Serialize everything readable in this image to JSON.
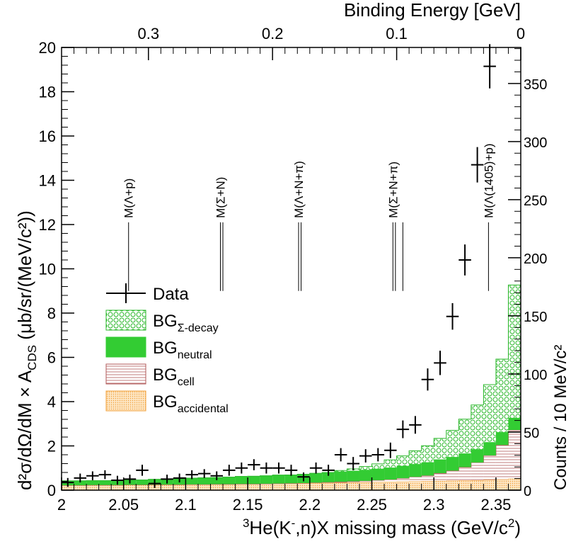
{
  "chart_data": {
    "type": "histogram",
    "xlabel_main": "He(K",
    "xlabel_sup1": "3",
    "xlabel_sup2": "-",
    "xlabel_rest": ",n)X missing mass (GeV/c",
    "xlabel_sup3": "2",
    "xlabel_end": ")",
    "x_range": [
      2.0,
      2.37
    ],
    "x_ticks": [
      "2",
      "2.05",
      "2.1",
      "2.15",
      "2.2",
      "2.25",
      "2.3",
      "2.35"
    ],
    "x_tick_values": [
      2.0,
      2.05,
      2.1,
      2.15,
      2.2,
      2.25,
      2.3,
      2.35
    ],
    "ylabel_left": "d²σ/dΩ/dM × A",
    "ylabel_left_sub": "CDS",
    "ylabel_left_units": " (μb/sr/(MeV/c²))",
    "y_range": [
      0,
      20
    ],
    "y_ticks": [
      "0",
      "2",
      "4",
      "6",
      "8",
      "10",
      "12",
      "14",
      "16",
      "18",
      "20"
    ],
    "y_tick_values": [
      0,
      2,
      4,
      6,
      8,
      10,
      12,
      14,
      16,
      18,
      20
    ],
    "ylabel_right": "Counts / 10 MeV/c²",
    "y2_range": [
      0,
      381
    ],
    "y2_ticks": [
      "0",
      "50",
      "100",
      "150",
      "200",
      "250",
      "300",
      "350"
    ],
    "y2_tick_values": [
      0,
      50,
      100,
      150,
      200,
      250,
      300,
      350
    ],
    "top_axis_label": "Binding Energy [GeV]",
    "top_ticks": [
      "0.3",
      "0.2",
      "0.1",
      "0"
    ],
    "top_tick_values": [
      0.3,
      0.2,
      0.1,
      0.0
    ],
    "top_axis_zero_mass": 2.37,
    "bin_edges": [
      2.0,
      2.01,
      2.02,
      2.03,
      2.04,
      2.05,
      2.06,
      2.07,
      2.08,
      2.09,
      2.1,
      2.11,
      2.12,
      2.13,
      2.14,
      2.15,
      2.16,
      2.17,
      2.18,
      2.19,
      2.2,
      2.21,
      2.22,
      2.23,
      2.24,
      2.25,
      2.26,
      2.27,
      2.28,
      2.29,
      2.3,
      2.31,
      2.32,
      2.33,
      2.34,
      2.35,
      2.36,
      2.37
    ],
    "data_points": {
      "x": [
        2.005,
        2.015,
        2.025,
        2.035,
        2.045,
        2.055,
        2.065,
        2.075,
        2.085,
        2.095,
        2.105,
        2.115,
        2.125,
        2.135,
        2.145,
        2.155,
        2.165,
        2.175,
        2.185,
        2.195,
        2.205,
        2.215,
        2.225,
        2.235,
        2.245,
        2.255,
        2.265,
        2.275,
        2.285,
        2.295,
        2.305,
        2.315,
        2.325,
        2.335,
        2.345
      ],
      "y": [
        0.35,
        0.55,
        0.65,
        0.7,
        0.45,
        0.5,
        0.9,
        0.3,
        0.5,
        0.55,
        0.7,
        0.75,
        0.65,
        0.9,
        1.0,
        1.15,
        1.0,
        1.0,
        0.9,
        0.6,
        1.0,
        0.9,
        1.6,
        1.2,
        1.55,
        1.6,
        1.8,
        2.75,
        2.95,
        5.0,
        5.75,
        7.85,
        10.4,
        14.7,
        19.15
      ],
      "err": [
        0.2,
        0.2,
        0.2,
        0.2,
        0.2,
        0.2,
        0.25,
        0.2,
        0.2,
        0.2,
        0.2,
        0.2,
        0.2,
        0.25,
        0.25,
        0.25,
        0.25,
        0.25,
        0.25,
        0.2,
        0.25,
        0.25,
        0.3,
        0.3,
        0.3,
        0.3,
        0.35,
        0.4,
        0.4,
        0.5,
        0.55,
        0.6,
        0.7,
        0.8,
        1.0
      ]
    },
    "stack": {
      "accidental": [
        0.22,
        0.22,
        0.23,
        0.23,
        0.23,
        0.24,
        0.24,
        0.25,
        0.25,
        0.25,
        0.26,
        0.26,
        0.27,
        0.27,
        0.28,
        0.28,
        0.29,
        0.3,
        0.3,
        0.31,
        0.32,
        0.33,
        0.34,
        0.35,
        0.36,
        0.37,
        0.38,
        0.39,
        0.4,
        0.41,
        0.42,
        0.43,
        0.44,
        0.45,
        0.47,
        0.49,
        0.52
      ],
      "cell": [
        0.0,
        0.0,
        0.0,
        0.0,
        0.0,
        0.0,
        0.0,
        0.0,
        0.0,
        0.0,
        0.0,
        0.0,
        0.0,
        0.0,
        0.0,
        0.0,
        0.0,
        0.0,
        0.01,
        0.01,
        0.02,
        0.03,
        0.04,
        0.05,
        0.06,
        0.08,
        0.1,
        0.15,
        0.2,
        0.25,
        0.35,
        0.45,
        0.6,
        0.8,
        1.1,
        1.55,
        2.2
      ],
      "neutral": [
        0.2,
        0.2,
        0.2,
        0.2,
        0.2,
        0.22,
        0.22,
        0.24,
        0.25,
        0.26,
        0.28,
        0.3,
        0.3,
        0.32,
        0.34,
        0.35,
        0.36,
        0.38,
        0.38,
        0.4,
        0.42,
        0.44,
        0.46,
        0.48,
        0.5,
        0.52,
        0.54,
        0.56,
        0.58,
        0.6,
        0.62,
        0.62,
        0.62,
        0.6,
        0.6,
        0.58,
        0.55
      ],
      "sigma_decay": [
        0.0,
        0.0,
        0.0,
        0.0,
        0.0,
        0.0,
        0.0,
        0.0,
        0.0,
        0.0,
        0.0,
        0.0,
        0.0,
        0.0,
        0.0,
        0.0,
        0.0,
        0.0,
        0.0,
        0.0,
        0.0,
        0.0,
        0.05,
        0.08,
        0.15,
        0.22,
        0.35,
        0.45,
        0.6,
        0.75,
        0.95,
        1.2,
        1.55,
        2.0,
        2.6,
        3.3,
        6.0
      ]
    },
    "thresholds": [
      {
        "label": "M(Λ+p)",
        "lines": [
          2.054
        ]
      },
      {
        "label": "M(Σ+N)",
        "lines": [
          2.128,
          2.13
        ]
      },
      {
        "label": "M(Λ+N+π)",
        "lines": [
          2.191,
          2.193
        ]
      },
      {
        "label": "M(Σ+N+π)",
        "lines": [
          2.267,
          2.269,
          2.275
        ]
      },
      {
        "label": "M(Λ(1405)+p)",
        "lines": [
          2.344
        ]
      }
    ],
    "threshold_line_y_range": [
      9.0,
      12.1
    ],
    "legend": [
      {
        "name": "Data",
        "sub": "",
        "kind": "data"
      },
      {
        "name": "BG",
        "sub": "Σ-decay",
        "kind": "sigma"
      },
      {
        "name": "BG",
        "sub": "neutral",
        "kind": "neutral"
      },
      {
        "name": "BG",
        "sub": "cell",
        "kind": "cell"
      },
      {
        "name": "BG",
        "sub": "accidental",
        "kind": "accidental"
      }
    ],
    "legend_position": "middle-left",
    "colors": {
      "data": "#000000",
      "sigma_decay": "#2db82d",
      "neutral": "#33cc33",
      "cell": "#b25a5a",
      "accidental": "#f2a23c"
    }
  }
}
